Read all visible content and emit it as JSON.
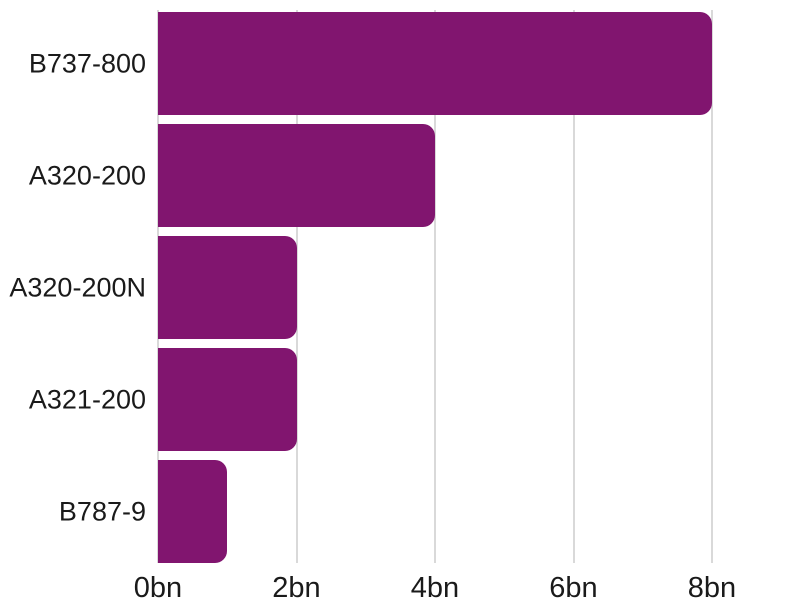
{
  "chart_data": {
    "type": "bar",
    "orientation": "horizontal",
    "title": "",
    "xlabel": "",
    "ylabel": "",
    "categories": [
      "B737-800",
      "A320-200",
      "A320-200N",
      "A321-200",
      "B787-9"
    ],
    "values": [
      8,
      4,
      2,
      2,
      1
    ],
    "unit": "bn",
    "xticks": [
      {
        "value": 0,
        "label": "0bn"
      },
      {
        "value": 2,
        "label": "2bn"
      },
      {
        "value": 4,
        "label": "4bn"
      },
      {
        "value": 6,
        "label": "6bn"
      },
      {
        "value": 8,
        "label": "8bn"
      }
    ],
    "xlim": [
      0,
      9.4
    ],
    "grid": "vertical",
    "legend": "none",
    "colors": {
      "bar": "#81156F",
      "gridline": "#D9D9D9",
      "text": "#1A1A1A",
      "background": "#FFFFFF"
    }
  }
}
